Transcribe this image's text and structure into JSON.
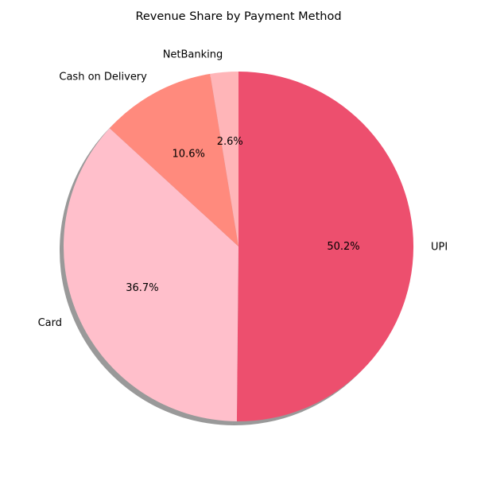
{
  "chart_data": {
    "type": "pie",
    "title": "Revenue Share by Payment Method",
    "categories": [
      "UPI",
      "Card",
      "Cash on Delivery",
      "NetBanking"
    ],
    "values": [
      50.2,
      36.7,
      10.6,
      2.6
    ],
    "value_labels": [
      "50.2%",
      "36.7%",
      "10.6%",
      "2.6%"
    ],
    "colors": [
      "#ed4f6e",
      "#ffbfcb",
      "#ff8a7d",
      "#ffb5b8"
    ],
    "start_angle_deg": 90,
    "direction": "clockwise",
    "shadow": true,
    "legend": "none"
  }
}
